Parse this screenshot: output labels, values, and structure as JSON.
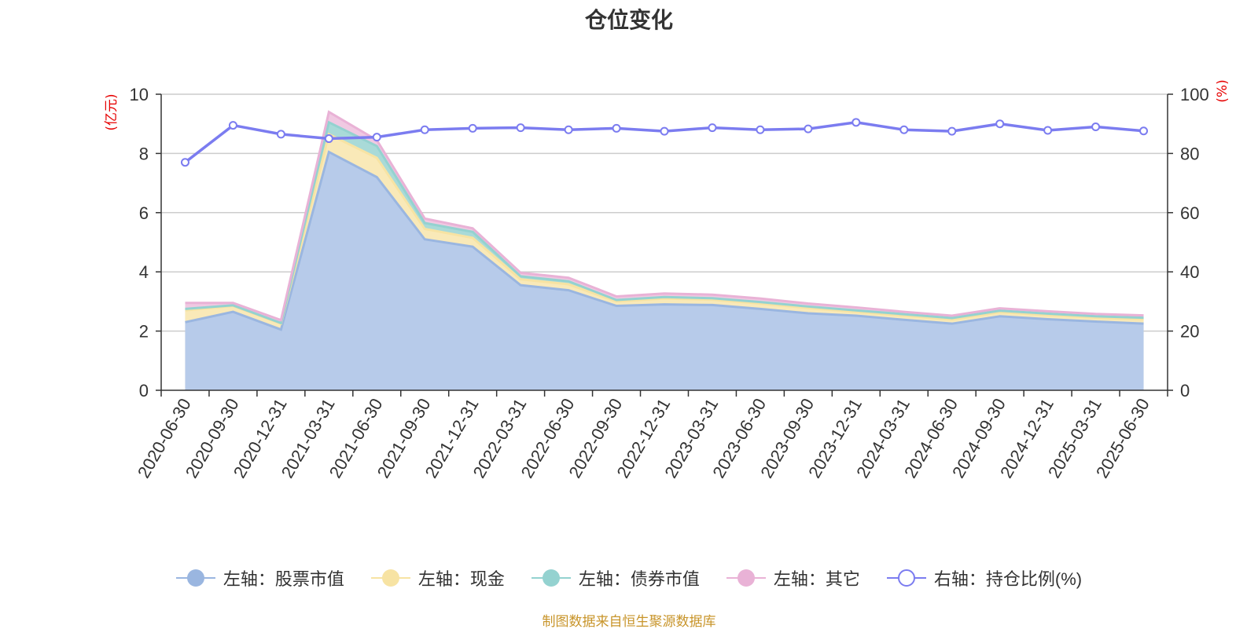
{
  "chart_data": {
    "type": "area",
    "title": "仓位变化",
    "x": [
      "2020-06-30",
      "2020-09-30",
      "2020-12-31",
      "2021-03-31",
      "2021-06-30",
      "2021-09-30",
      "2021-12-31",
      "2022-03-31",
      "2022-06-30",
      "2022-09-30",
      "2022-12-31",
      "2023-03-31",
      "2023-06-30",
      "2023-09-30",
      "2023-12-31",
      "2024-03-31",
      "2024-06-30",
      "2024-09-30",
      "2024-12-31",
      "2025-03-31",
      "2025-06-30"
    ],
    "y_left_unit": "(亿元)",
    "y_right_unit": "(%)",
    "y_left_ticks": [
      "0",
      "2",
      "4",
      "6",
      "8",
      "10"
    ],
    "y_right_ticks": [
      "0",
      "20",
      "40",
      "60",
      "80",
      "100"
    ],
    "ylim_left": [
      0,
      10
    ],
    "ylim_right": [
      0,
      100
    ],
    "stacked": true,
    "grid": true,
    "legend_position": "bottom",
    "series": [
      {
        "name": "左轴：股票市值",
        "axis": "left",
        "color": "#9ab6e0",
        "fill": "#b7cbea",
        "values": [
          2.3,
          2.65,
          2.05,
          8.05,
          7.2,
          5.1,
          4.85,
          3.55,
          3.38,
          2.85,
          2.9,
          2.88,
          2.75,
          2.6,
          2.52,
          2.38,
          2.25,
          2.5,
          2.4,
          2.32,
          2.25
        ]
      },
      {
        "name": "左轴：现金",
        "axis": "left",
        "color": "#f7e3a3",
        "fill": "#f9e9b8",
        "values": [
          0.4,
          0.2,
          0.2,
          0.6,
          0.65,
          0.35,
          0.3,
          0.2,
          0.2,
          0.15,
          0.2,
          0.18,
          0.18,
          0.18,
          0.13,
          0.14,
          0.14,
          0.14,
          0.14,
          0.13,
          0.15
        ]
      },
      {
        "name": "左轴：债券市值",
        "axis": "left",
        "color": "#94d2d0",
        "fill": "#a9dad8",
        "values": [
          0.05,
          0.02,
          0.02,
          0.4,
          0.4,
          0.2,
          0.2,
          0.1,
          0.1,
          0.05,
          0.05,
          0.05,
          0.05,
          0.05,
          0.05,
          0.05,
          0.05,
          0.05,
          0.05,
          0.05,
          0.05
        ]
      },
      {
        "name": "左轴：其它",
        "axis": "left",
        "color": "#e9b2d6",
        "fill": "#f0c9e2",
        "values": [
          0.2,
          0.08,
          0.1,
          0.35,
          0.2,
          0.15,
          0.12,
          0.12,
          0.12,
          0.12,
          0.12,
          0.12,
          0.12,
          0.1,
          0.1,
          0.08,
          0.08,
          0.08,
          0.08,
          0.08,
          0.08
        ]
      },
      {
        "name": "右轴：持仓比例(%)",
        "axis": "right",
        "type": "line",
        "color": "#7b7cf0",
        "values": [
          77,
          89.5,
          86.5,
          85,
          85.5,
          88,
          88.5,
          88.7,
          88,
          88.5,
          87.5,
          88.7,
          88,
          88.3,
          90.5,
          88,
          87.5,
          90,
          87.8,
          89,
          87.6
        ]
      }
    ]
  },
  "source_text": "制图数据来自恒生聚源数据库"
}
